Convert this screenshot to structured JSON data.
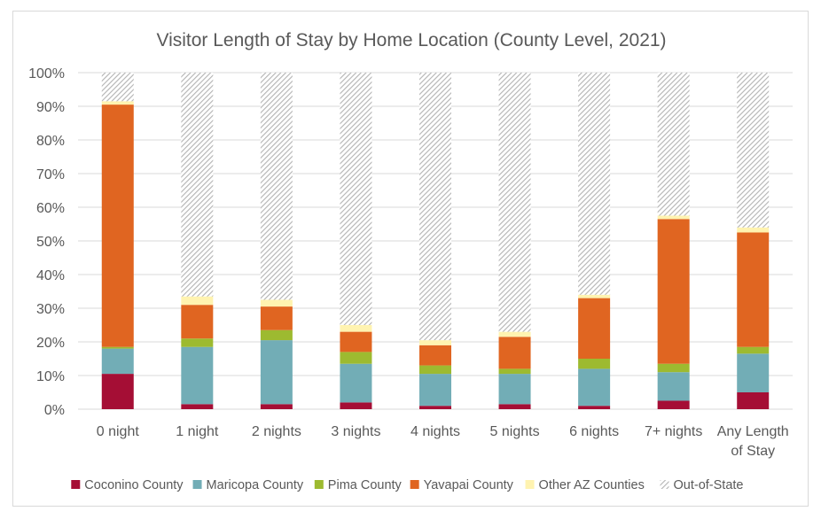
{
  "chart_data": {
    "type": "bar",
    "stacked": true,
    "title": "Visitor Length of Stay by Home Location (County Level, 2021)",
    "xlabel": "",
    "ylabel": "",
    "ylim": [
      0,
      100
    ],
    "y_ticks": [
      "0%",
      "10%",
      "20%",
      "30%",
      "40%",
      "50%",
      "60%",
      "70%",
      "80%",
      "90%",
      "100%"
    ],
    "grid": true,
    "legend_position": "bottom",
    "categories": [
      [
        "0 night"
      ],
      [
        "1 night"
      ],
      [
        "2 nights"
      ],
      [
        "3 nights"
      ],
      [
        "4 nights"
      ],
      [
        "5 nights"
      ],
      [
        "6 nights"
      ],
      [
        "7+ nights"
      ],
      [
        "Any Length",
        "of Stay"
      ]
    ],
    "series": [
      {
        "name": "Coconino County",
        "color": "#a50e35",
        "values": [
          10.5,
          1.5,
          1.5,
          2,
          1,
          1.5,
          1,
          2.5,
          5
        ]
      },
      {
        "name": "Maricopa County",
        "color": "#72adb6",
        "values": [
          7.5,
          17,
          19,
          11.5,
          9.5,
          9,
          11,
          8.5,
          11.5
        ]
      },
      {
        "name": "Pima County",
        "color": "#9dba30",
        "values": [
          0.5,
          2.5,
          3,
          3.5,
          2.5,
          1.5,
          3,
          2.5,
          2
        ]
      },
      {
        "name": "Yavapai County",
        "color": "#e06521",
        "values": [
          72,
          10,
          7,
          6,
          6,
          9.5,
          18,
          43,
          34
        ]
      },
      {
        "name": "Other AZ Counties",
        "color": "#fff3b0",
        "values": [
          1,
          2.5,
          2,
          2,
          1.5,
          1.5,
          1,
          1,
          1.5
        ]
      },
      {
        "name": "Out-of-State",
        "color": "#c9c9c9",
        "pattern": "diagonal-hatch",
        "values": [
          8.5,
          66.5,
          67.5,
          75,
          79.5,
          77,
          66,
          42.5,
          46
        ]
      }
    ]
  }
}
